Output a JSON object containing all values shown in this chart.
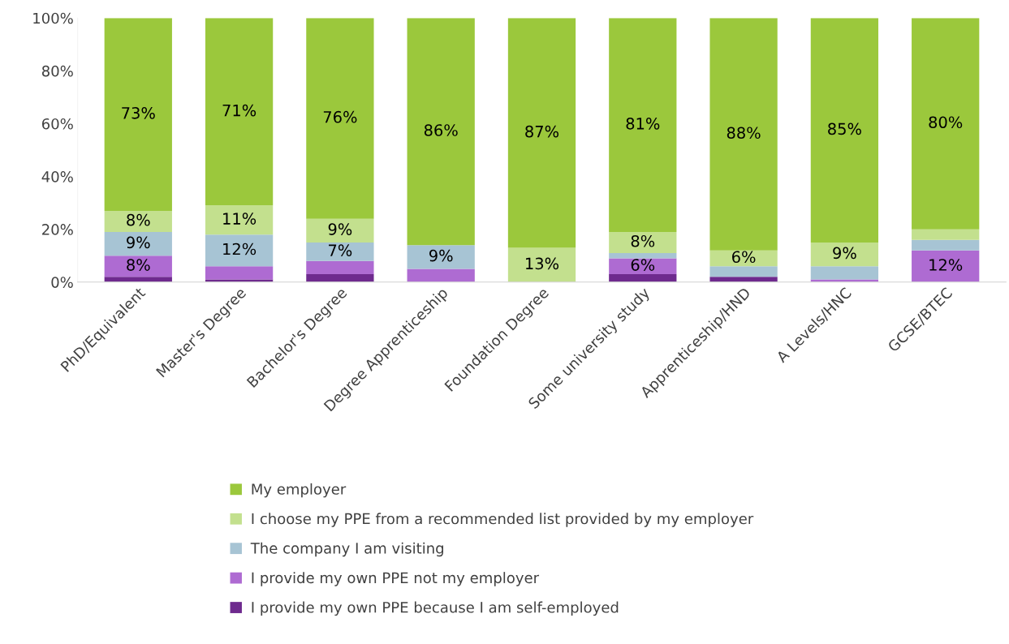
{
  "chart_data": {
    "type": "bar",
    "stacked": true,
    "categories": [
      "PhD/Equivalent",
      "Master's Degree",
      "Bachelor's Degree",
      "Degree Apprenticeship",
      "Foundation Degree",
      "Some university study",
      "Apprenticeship/HND",
      "A Levels/HNC",
      "GCSE/BTEC"
    ],
    "series": [
      {
        "name": "I provide my own PPE because I am self-employed",
        "color": "#6e2a8e",
        "values": [
          2,
          1,
          3,
          0,
          0,
          3,
          2,
          0,
          0
        ],
        "value_labels": [
          null,
          null,
          null,
          null,
          null,
          null,
          null,
          null,
          null
        ]
      },
      {
        "name": "I provide my own PPE not my employer",
        "color": "#ae6bd2",
        "values": [
          8,
          5,
          5,
          5,
          0,
          6,
          0,
          1,
          12
        ],
        "value_labels": [
          "8%",
          null,
          null,
          null,
          null,
          "6%",
          null,
          null,
          "12%"
        ]
      },
      {
        "name": "The company I am visiting",
        "color": "#a7c4d4",
        "values": [
          9,
          12,
          7,
          9,
          0,
          2,
          4,
          5,
          4
        ],
        "value_labels": [
          "9%",
          "12%",
          "7%",
          "9%",
          null,
          null,
          null,
          null,
          null
        ]
      },
      {
        "name": "I choose my PPE from a recommended list provided by my employer",
        "color": "#c3e08e",
        "values": [
          8,
          11,
          9,
          0,
          13,
          8,
          6,
          9,
          4
        ],
        "value_labels": [
          "8%",
          "11%",
          "9%",
          null,
          "13%",
          "8%",
          "6%",
          "9%",
          null
        ]
      },
      {
        "name": "My employer",
        "color": "#9bc83c",
        "values": [
          73,
          71,
          76,
          86,
          87,
          81,
          88,
          85,
          80
        ],
        "value_labels": [
          "73%",
          "71%",
          "76%",
          "86%",
          "87%",
          "81%",
          "88%",
          "85%",
          "80%"
        ]
      }
    ],
    "ylim": [
      0,
      100
    ],
    "yticks": [
      {
        "value": 0,
        "label": "0%"
      },
      {
        "value": 20,
        "label": "20%"
      },
      {
        "value": 40,
        "label": "40%"
      },
      {
        "value": 60,
        "label": "60%"
      },
      {
        "value": 80,
        "label": "80%"
      },
      {
        "value": 100,
        "label": "100%"
      }
    ],
    "grid": false,
    "legend": "bottom"
  }
}
